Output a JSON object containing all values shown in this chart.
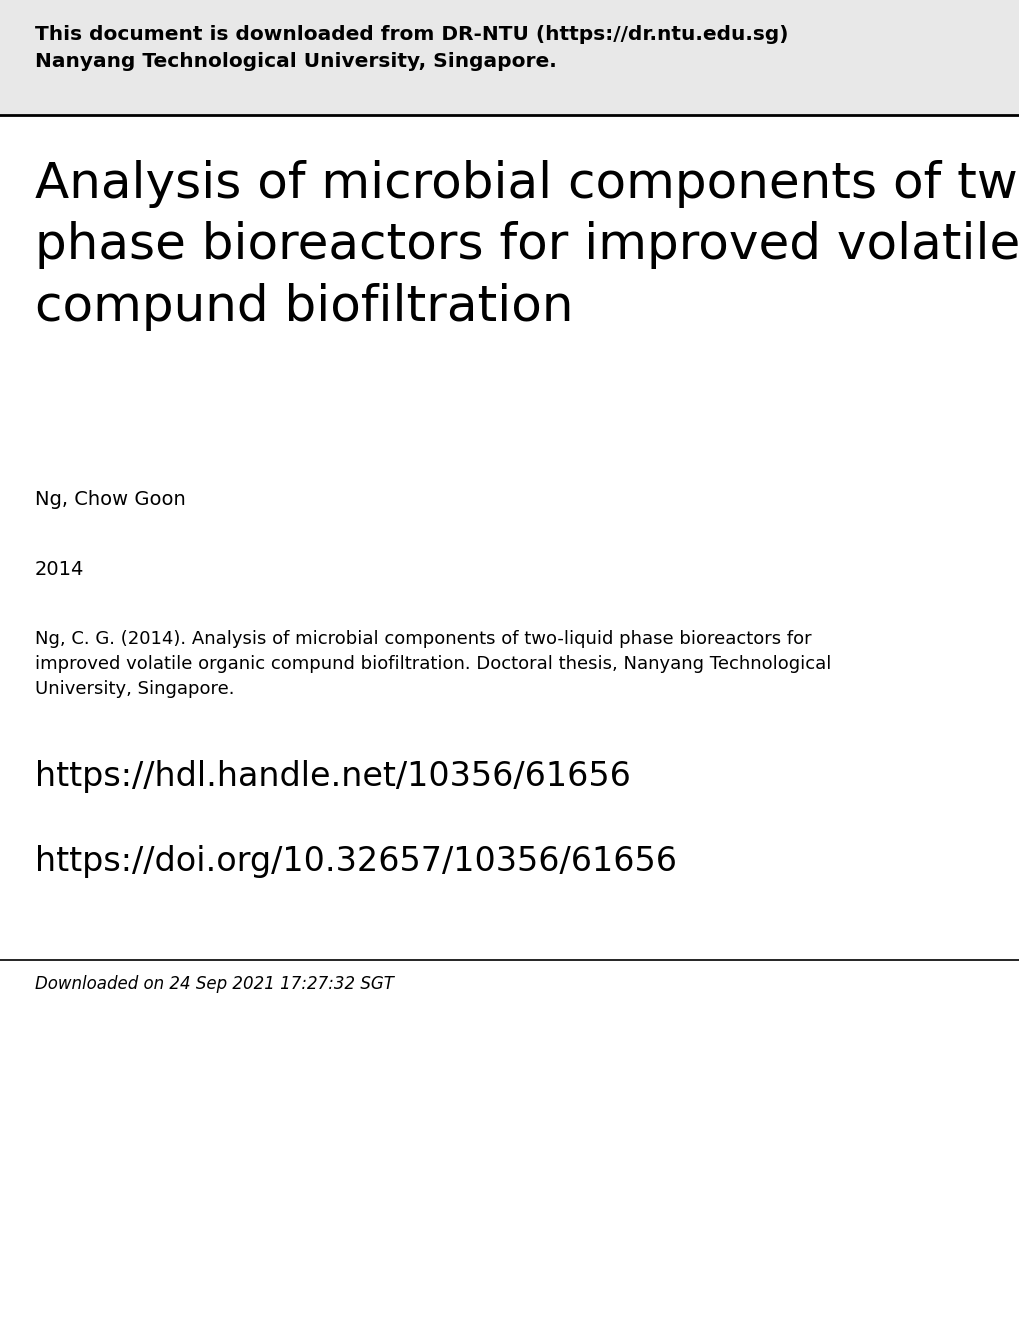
{
  "header_line1": "This document is downloaded from DR-NTU (https://dr.ntu.edu.sg)",
  "header_line2": "Nanyang Technological University, Singapore.",
  "title_line1": "Analysis of microbial components of two-liquid",
  "title_line2": "phase bioreactors for improved volatile organic",
  "title_line3": "compund biofiltration",
  "author": "Ng, Chow Goon",
  "year": "2014",
  "citation": "Ng, C. G. (2014). Analysis of microbial components of two-liquid phase bioreactors for\nimproved volatile organic compund biofiltration. Doctoral thesis, Nanyang Technological\nUniversity, Singapore.",
  "url1": "https://hdl.handle.net/10356/61656",
  "url2": "https://doi.org/10.32657/10356/61656",
  "footer": "Downloaded on 24 Sep 2021 17:27:32 SGT",
  "bg_color": "#ffffff",
  "header_bg": "#e8e8e8",
  "text_color": "#000000",
  "header_fontsize": 14.5,
  "title_fontsize": 36,
  "author_fontsize": 14,
  "year_fontsize": 14,
  "citation_fontsize": 13,
  "url_fontsize": 24,
  "footer_fontsize": 12,
  "fig_width": 10.2,
  "fig_height": 13.2,
  "dpi": 100
}
